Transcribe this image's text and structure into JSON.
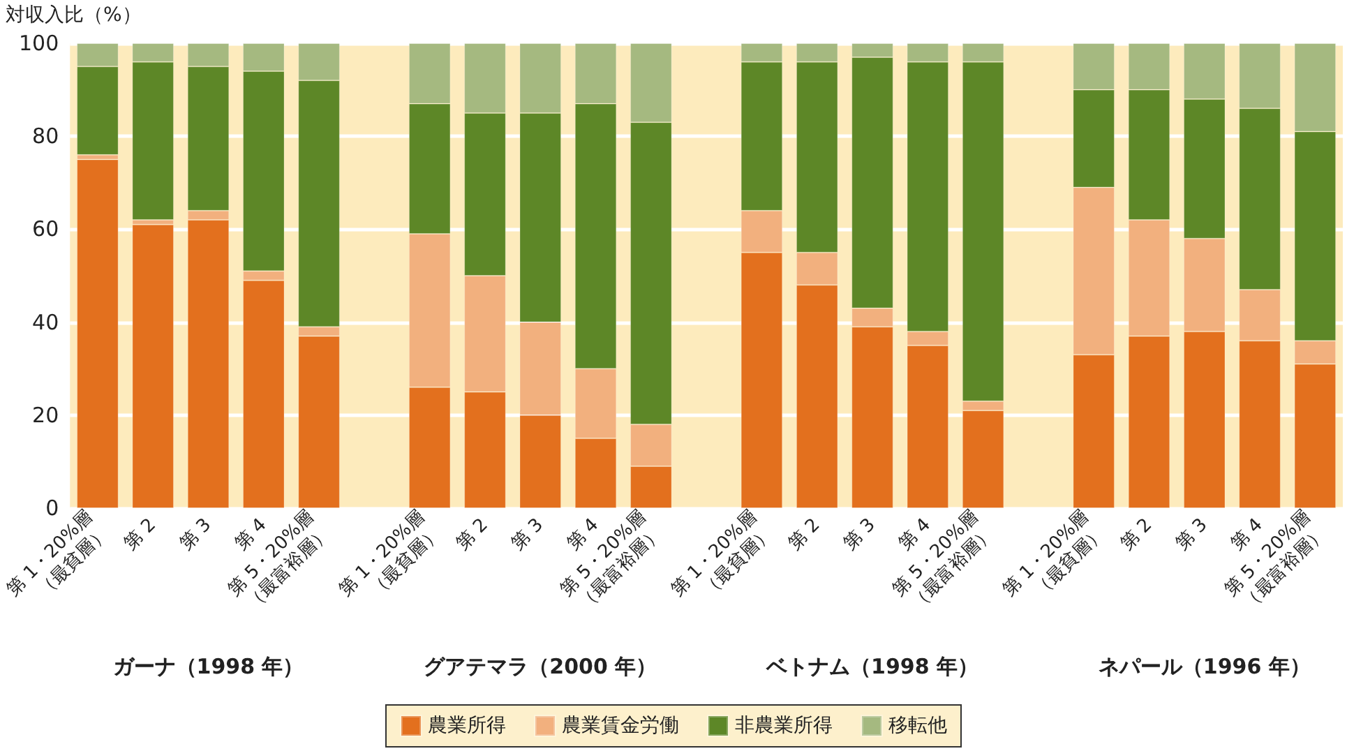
{
  "chart_data": {
    "type": "bar",
    "stacked": true,
    "ylabel": "対収入比（%）",
    "categories": [
      "第 1・20%層\n（最貧層）",
      "第 2",
      "第 3",
      "第 4",
      "第 5・20%層\n（最富裕層）",
      null,
      "第 1・20%層\n（最貧層）",
      "第 2",
      "第 3",
      "第 4",
      "第 5・20%層\n（最富裕層）",
      null,
      "第 1・20%層\n（最貧層）",
      "第 2",
      "第 3",
      "第 4",
      "第 5・20%層\n（最富裕層）",
      null,
      "第 1・20%層\n（最貧層）",
      "第 2",
      "第 3",
      "第 4",
      "第 5・20%層\n（最富裕層）"
    ],
    "series": [
      {
        "name": "農業所得",
        "color": "#e3701e",
        "values": [
          75,
          61,
          62,
          49,
          37,
          null,
          26,
          25,
          20,
          15,
          9,
          null,
          55,
          48,
          39,
          35,
          21,
          null,
          33,
          37,
          38,
          36,
          31
        ]
      },
      {
        "name": "農業賃金労働",
        "color": "#f2b07e",
        "values": [
          1,
          1,
          2,
          2,
          2,
          null,
          33,
          25,
          20,
          15,
          9,
          null,
          9,
          7,
          4,
          3,
          2,
          null,
          36,
          25,
          20,
          11,
          5
        ]
      },
      {
        "name": "非農業所得",
        "color": "#5d8727",
        "values": [
          19,
          34,
          31,
          43,
          53,
          null,
          28,
          35,
          45,
          57,
          65,
          null,
          32,
          41,
          54,
          58,
          73,
          null,
          21,
          28,
          30,
          39,
          45
        ]
      },
      {
        "name": "移転他",
        "color": "#a5b980",
        "values": [
          5,
          4,
          5,
          6,
          8,
          null,
          13,
          15,
          15,
          13,
          17,
          null,
          4,
          4,
          3,
          4,
          4,
          null,
          10,
          10,
          12,
          14,
          19
        ]
      }
    ],
    "annotations": [
      "ガーナ（1998 年）",
      "グアテマラ（2000 年）",
      "ベトナム（1998 年）",
      "ネパール（1996 年）"
    ],
    "ylim": [
      0,
      100
    ],
    "yticks": [
      0,
      20,
      40,
      60,
      80,
      100
    ],
    "grid": "y",
    "legend": "bottom"
  }
}
